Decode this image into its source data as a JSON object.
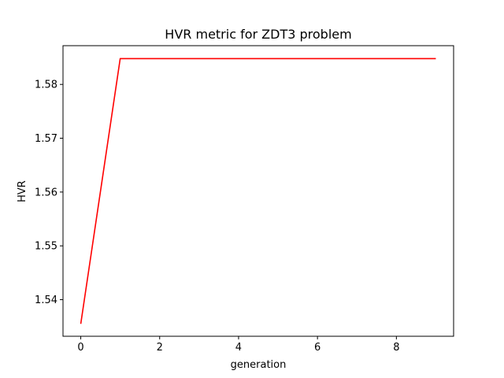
{
  "chart_data": {
    "type": "line",
    "title": "HVR metric for ZDT3 problem",
    "xlabel": "generation",
    "ylabel": "HVR",
    "xlim": [
      -0.45,
      9.45
    ],
    "ylim": [
      1.5332,
      1.5872
    ],
    "xticks": [
      0,
      2,
      4,
      6,
      8
    ],
    "xtick_labels": [
      "0",
      "2",
      "4",
      "6",
      "8"
    ],
    "yticks": [
      1.54,
      1.55,
      1.56,
      1.57,
      1.58
    ],
    "ytick_labels": [
      "1.54",
      "1.55",
      "1.56",
      "1.57",
      "1.58"
    ],
    "grid": false,
    "legend": "none",
    "series": [
      {
        "color": "#ff0000",
        "x": [
          0,
          1,
          2,
          3,
          4,
          5,
          6,
          7,
          8,
          9
        ],
        "y": [
          1.5355,
          1.5848,
          1.5848,
          1.5848,
          1.5848,
          1.5848,
          1.5848,
          1.5848,
          1.5848,
          1.5848
        ]
      }
    ]
  }
}
